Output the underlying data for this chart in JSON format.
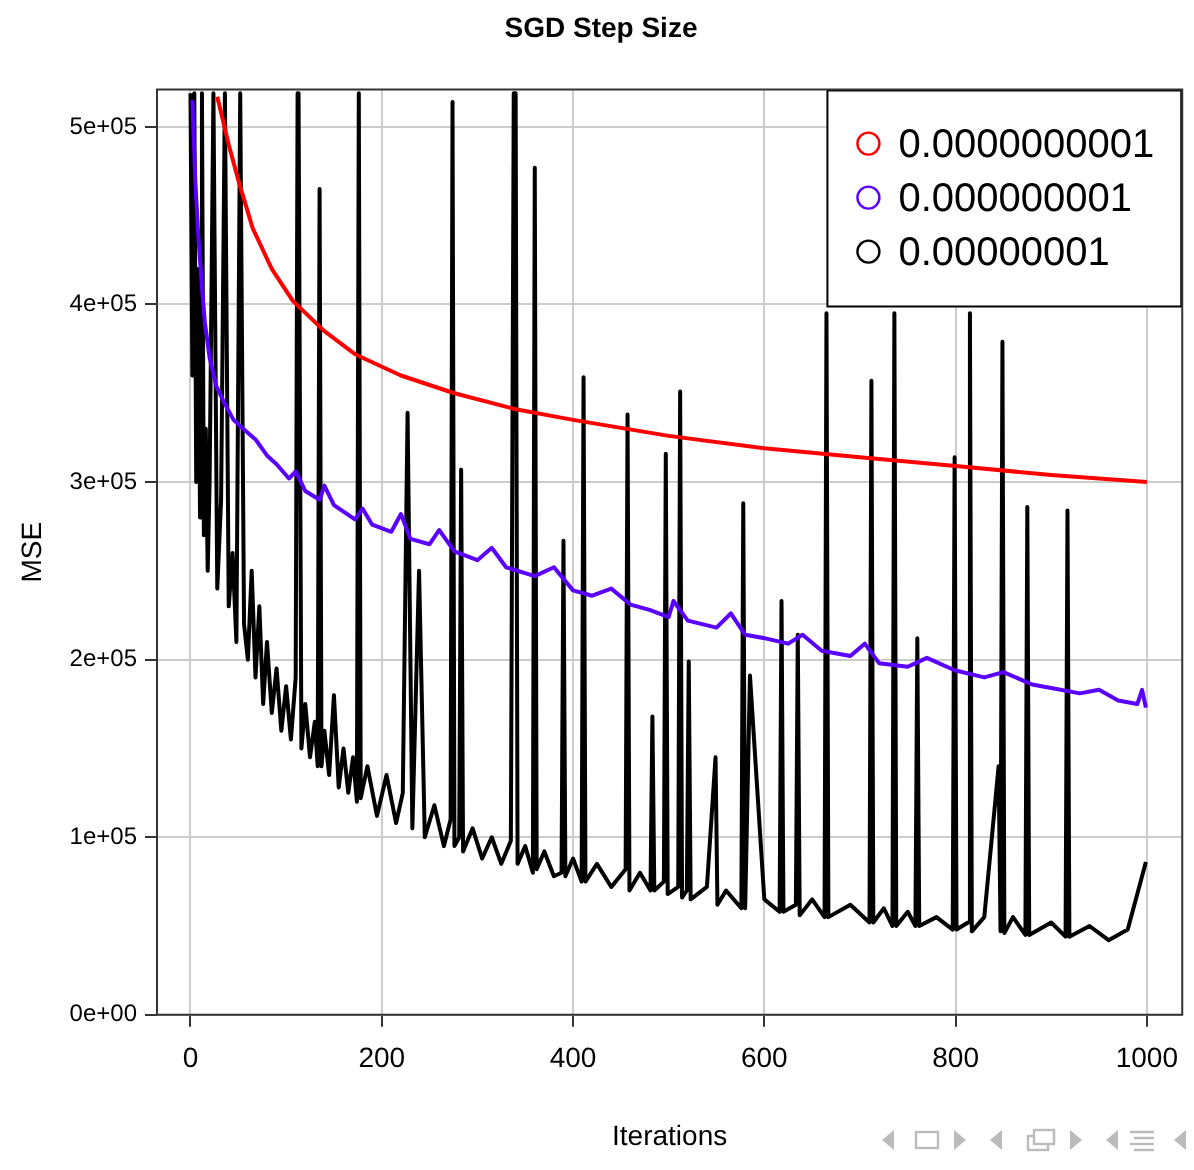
{
  "chart_data": {
    "type": "line",
    "title": "SGD Step Size",
    "xlabel": "Iterations",
    "ylabel": "MSE",
    "xlim": [
      -35,
      1037
    ],
    "xticks": [
      0,
      200,
      400,
      600,
      800,
      1000
    ],
    "ylim": [
      0,
      521000
    ],
    "yticks": [
      {
        "value": 0,
        "label": "0e+00"
      },
      {
        "value": 100000,
        "label": "1e+05"
      },
      {
        "value": 200000,
        "label": "2e+05"
      },
      {
        "value": 300000,
        "label": "3e+05"
      },
      {
        "value": 400000,
        "label": "4e+05"
      },
      {
        "value": 500000,
        "label": "5e+05"
      }
    ],
    "grid": true,
    "legend": "top right",
    "marker": "none",
    "line_style": "solid",
    "series": [
      {
        "name": "0.0000000001",
        "color": "#ff0000",
        "x": [
          28,
          40,
          50,
          65,
          85,
          107,
          140,
          172,
          220,
          276,
          340,
          400,
          500,
          600,
          700,
          800,
          900,
          1000
        ],
        "values": [
          517000,
          490000,
          470000,
          443000,
          420000,
          402000,
          385000,
          372000,
          360000,
          350000,
          341000,
          335000,
          326000,
          319000,
          314000,
          309000,
          304000,
          300000
        ]
      },
      {
        "name": "0.000000001",
        "color": "#5a00ff",
        "x": [
          2,
          5,
          8,
          12,
          15,
          20,
          27,
          35,
          45,
          55,
          68,
          80,
          90,
          103,
          110,
          120,
          135,
          140,
          150,
          172,
          180,
          190,
          210,
          220,
          230,
          250,
          260,
          276,
          300,
          315,
          330,
          360,
          380,
          400,
          420,
          440,
          460,
          480,
          500,
          505,
          520,
          550,
          565,
          580,
          601,
          625,
          640,
          660,
          690,
          705,
          720,
          750,
          770,
          799,
          830,
          850,
          880,
          900,
          930,
          950,
          970,
          990,
          995,
          999
        ],
        "values": [
          515000,
          470000,
          440000,
          410000,
          390000,
          370000,
          354000,
          345000,
          335000,
          330000,
          324000,
          315000,
          310000,
          302000,
          306000,
          295000,
          290000,
          298000,
          287000,
          279000,
          285000,
          276000,
          272000,
          282000,
          268000,
          265000,
          273000,
          261000,
          256000,
          263000,
          252000,
          247000,
          252000,
          239000,
          236000,
          240000,
          231000,
          228000,
          224000,
          233000,
          222000,
          218000,
          226000,
          214000,
          212000,
          209000,
          214000,
          205000,
          202000,
          209000,
          198000,
          196000,
          201000,
          194000,
          190000,
          193000,
          186000,
          184000,
          181000,
          183000,
          177000,
          175000,
          183000,
          173000
        ]
      },
      {
        "name": "0.00000001",
        "color": "#000000",
        "x": [
          0,
          2,
          4,
          6,
          8,
          10,
          12,
          14,
          16,
          18,
          20,
          24,
          28,
          32,
          36,
          40,
          44,
          48,
          52,
          56,
          60,
          64,
          68,
          72,
          76,
          80,
          85,
          90,
          95,
          100,
          105,
          110,
          112,
          113,
          114,
          116,
          120,
          125,
          130,
          133,
          135,
          137,
          140,
          145,
          150,
          155,
          160,
          165,
          170,
          174,
          176,
          178,
          185,
          195,
          205,
          215,
          222,
          227,
          232,
          239,
          245,
          255,
          265,
          272,
          274,
          276,
          281,
          283,
          285,
          295,
          305,
          315,
          325,
          335,
          338,
          340,
          342,
          350,
          358,
          360,
          362,
          370,
          380,
          388,
          390,
          392,
          400,
          409,
          411,
          413,
          425,
          440,
          455,
          457,
          459,
          470,
          481,
          483,
          485,
          495,
          497,
          499,
          510,
          512,
          514,
          519,
          521,
          523,
          540,
          549,
          551,
          560,
          576,
          578,
          580,
          585,
          600,
          616,
          618,
          620,
          633,
          635,
          637,
          650,
          663,
          665,
          667,
          690,
          710,
          712,
          714,
          725,
          734,
          736,
          738,
          750,
          758,
          760,
          762,
          780,
          797,
          799,
          801,
          813,
          815,
          817,
          830,
          845,
          847,
          849,
          851,
          860,
          873,
          875,
          877,
          900,
          915,
          917,
          919,
          940,
          960,
          980,
          999
        ],
        "values": [
          519000,
          360000,
          519000,
          300000,
          420000,
          280000,
          519000,
          270000,
          330000,
          250000,
          300000,
          519000,
          240000,
          290000,
          519000,
          230000,
          260000,
          210000,
          519000,
          220000,
          200000,
          250000,
          190000,
          230000,
          175000,
          210000,
          170000,
          195000,
          160000,
          185000,
          155000,
          190000,
          519000,
          519000,
          519000,
          150000,
          175000,
          145000,
          165000,
          140000,
          465000,
          140000,
          160000,
          135000,
          180000,
          128000,
          150000,
          125000,
          145000,
          120000,
          519000,
          122000,
          140000,
          112000,
          135000,
          108000,
          125000,
          339000,
          105000,
          250000,
          100000,
          118000,
          95000,
          110000,
          514000,
          95000,
          100000,
          307000,
          92000,
          105000,
          88000,
          100000,
          85000,
          98000,
          519000,
          519000,
          85000,
          95000,
          80000,
          477000,
          82000,
          92000,
          78000,
          80000,
          267000,
          78000,
          88000,
          75000,
          359000,
          75000,
          85000,
          72000,
          82000,
          338000,
          70000,
          80000,
          70000,
          168000,
          70000,
          75000,
          316000,
          68000,
          72000,
          351000,
          66000,
          70000,
          199000,
          65000,
          72000,
          145000,
          62000,
          70000,
          60000,
          288000,
          60000,
          191000,
          65000,
          58000,
          233000,
          58000,
          62000,
          214000,
          56000,
          65000,
          55000,
          395000,
          55000,
          62000,
          52000,
          357000,
          52000,
          60000,
          50000,
          395000,
          50000,
          58000,
          50000,
          212000,
          50000,
          55000,
          48000,
          314000,
          48000,
          52000,
          395000,
          47000,
          55000,
          140000,
          47000,
          379000,
          46000,
          55000,
          45000,
          286000,
          45000,
          52000,
          44000,
          284000,
          44000,
          50000,
          42000,
          48000,
          86000
        ]
      }
    ]
  }
}
